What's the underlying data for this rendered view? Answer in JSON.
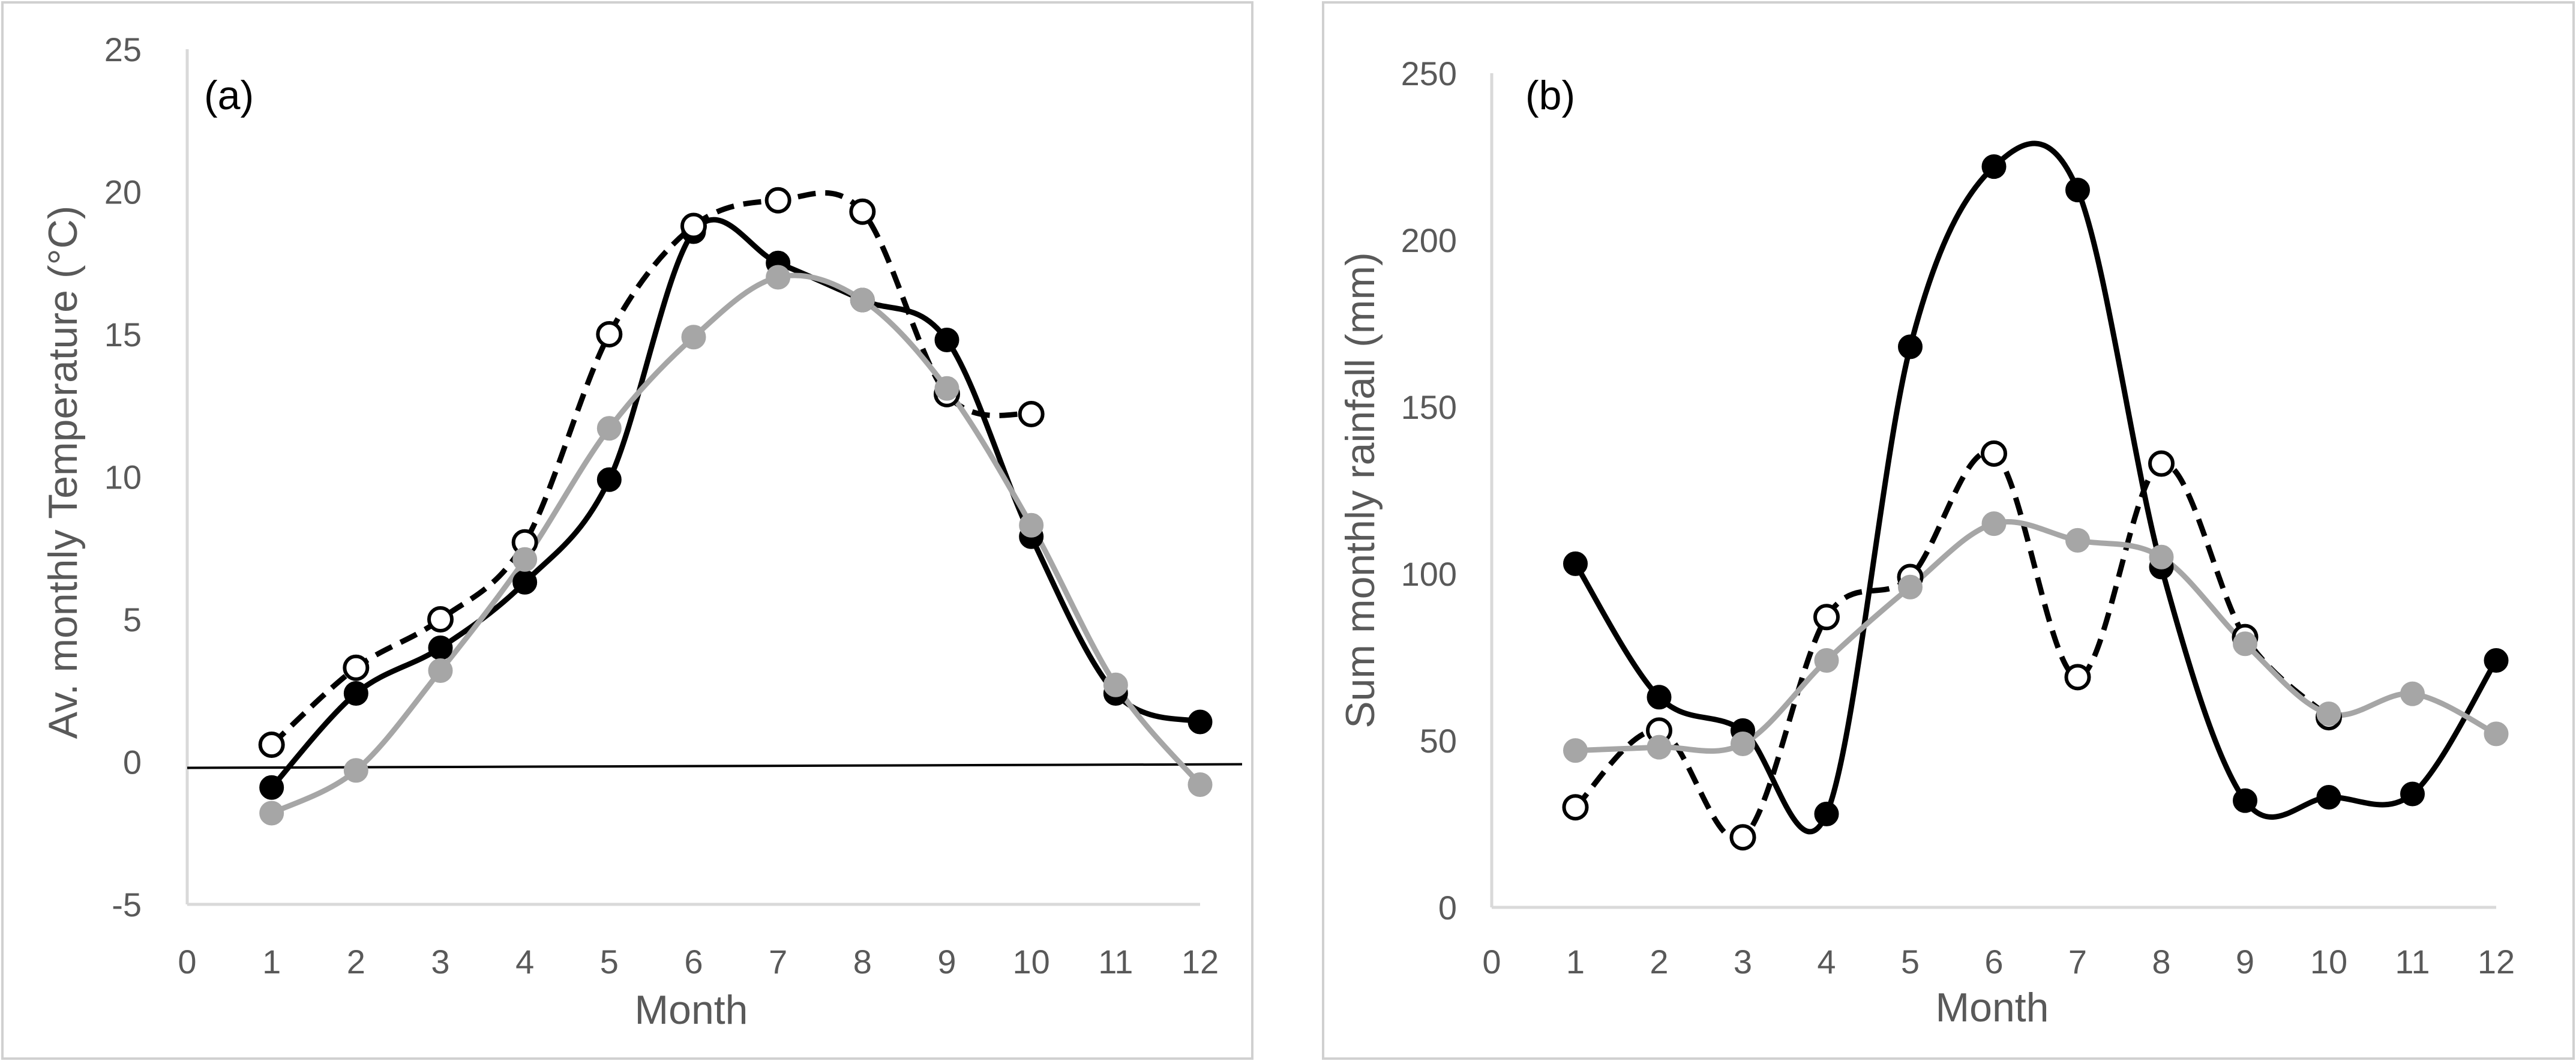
{
  "chart_data": [
    {
      "type": "line",
      "panel_label": "(a)",
      "title": "",
      "xlabel": "Month",
      "ylabel": "Av. monthly Temperature (°C)",
      "xlim": [
        0,
        12
      ],
      "ylim": [
        -5,
        25
      ],
      "xticks": [
        "0",
        "1",
        "2",
        "3",
        "4",
        "5",
        "6",
        "7",
        "8",
        "9",
        "10",
        "11",
        "12"
      ],
      "yticks": [
        "-5",
        "0",
        "5",
        "10",
        "15",
        "20",
        "25"
      ],
      "grid": false,
      "legend": "none",
      "zero_line": true,
      "series": [
        {
          "name": "black-filled",
          "color": "#000000",
          "marker": "filled",
          "dash": "solid",
          "x": [
            1,
            2,
            3,
            4,
            5,
            6,
            7,
            8,
            9,
            10,
            11,
            12
          ],
          "values": [
            -0.9,
            2.4,
            4.0,
            6.3,
            9.9,
            18.6,
            17.5,
            16.2,
            14.8,
            7.9,
            2.4,
            1.4
          ]
        },
        {
          "name": "open-dashed",
          "color": "#000000",
          "marker": "open",
          "dash": "dashed",
          "x": [
            1,
            2,
            3,
            4,
            5,
            6,
            7,
            8,
            9,
            10
          ],
          "values": [
            0.6,
            3.3,
            5.0,
            7.7,
            15.0,
            18.8,
            19.7,
            19.3,
            12.9,
            12.2
          ]
        },
        {
          "name": "grey-filled",
          "color": "#a6a6a6",
          "marker": "filled",
          "dash": "solid",
          "x": [
            1,
            2,
            3,
            4,
            5,
            6,
            7,
            8,
            9,
            10,
            11,
            12
          ],
          "values": [
            -1.8,
            -0.3,
            3.2,
            7.1,
            11.7,
            14.9,
            17.0,
            16.2,
            13.1,
            8.3,
            2.7,
            -0.8
          ]
        }
      ]
    },
    {
      "type": "line",
      "panel_label": "(b)",
      "title": "",
      "xlabel": "Month",
      "ylabel": "Sum monthly rainfall (mm)",
      "xlim": [
        0,
        12
      ],
      "ylim": [
        0,
        250
      ],
      "xticks": [
        "0",
        "1",
        "2",
        "3",
        "4",
        "5",
        "6",
        "7",
        "8",
        "9",
        "10",
        "11",
        "12"
      ],
      "yticks": [
        "0",
        "50",
        "100",
        "150",
        "200",
        "250"
      ],
      "grid": false,
      "legend": "none",
      "zero_line": false,
      "series": [
        {
          "name": "black-filled",
          "color": "#000000",
          "marker": "filled",
          "dash": "solid",
          "x": [
            1,
            2,
            3,
            4,
            5,
            6,
            7,
            8,
            9,
            10,
            11,
            12
          ],
          "values": [
            103,
            63,
            53,
            28,
            168,
            222,
            215,
            102,
            32,
            33,
            34,
            74
          ]
        },
        {
          "name": "open-dashed",
          "color": "#000000",
          "marker": "open",
          "dash": "dashed",
          "x": [
            1,
            2,
            3,
            4,
            5,
            6,
            7,
            8,
            9,
            10
          ],
          "values": [
            30,
            53,
            21,
            87,
            99,
            136,
            69,
            133,
            81,
            57
          ]
        },
        {
          "name": "grey-filled",
          "color": "#a6a6a6",
          "marker": "filled",
          "dash": "solid",
          "x": [
            1,
            2,
            3,
            4,
            5,
            6,
            7,
            8,
            9,
            10,
            11,
            12
          ],
          "values": [
            47,
            48,
            49,
            74,
            96,
            115,
            110,
            105,
            79,
            58,
            64,
            52
          ]
        }
      ]
    }
  ]
}
